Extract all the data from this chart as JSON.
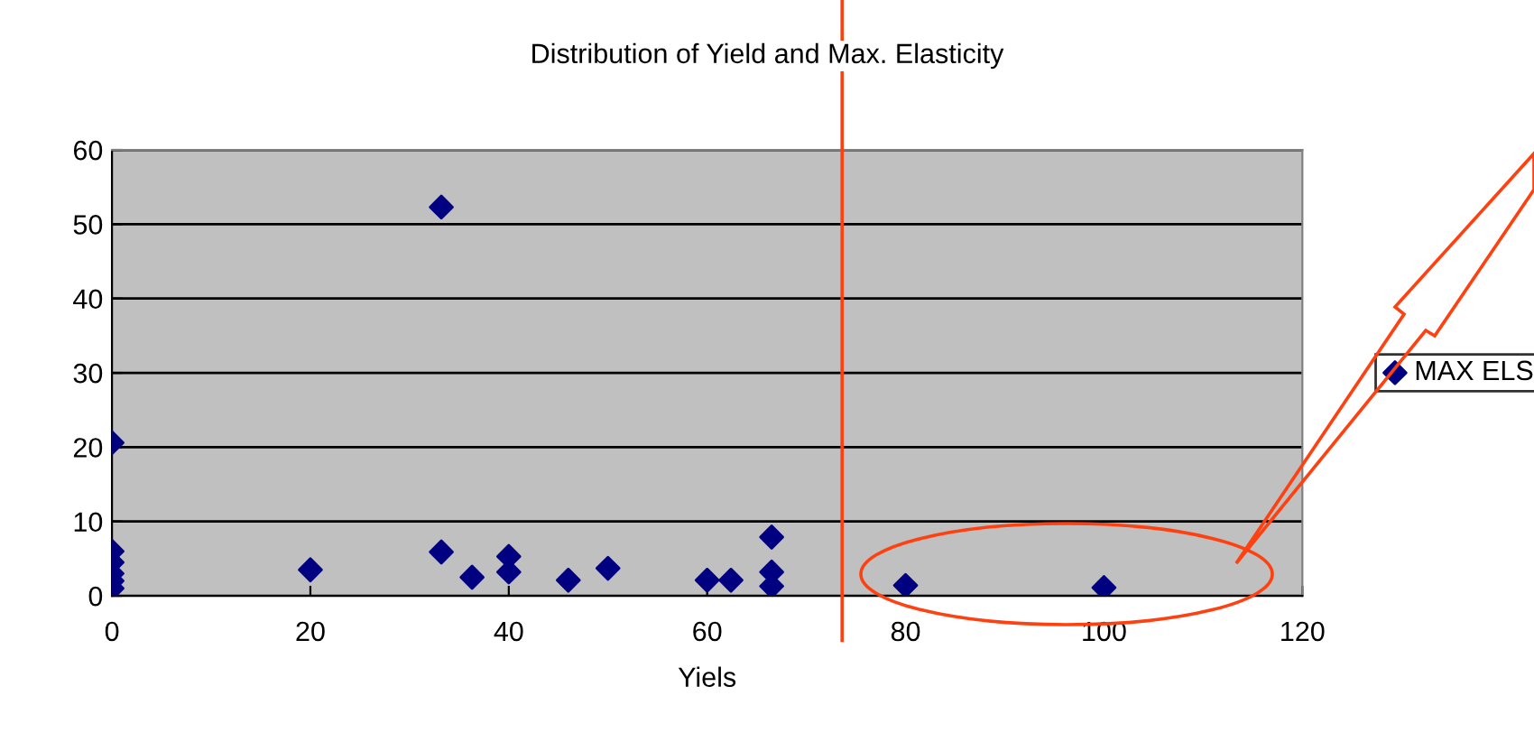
{
  "chart_data": {
    "type": "scatter",
    "title": "Distribution of Yield and Max. Elasticity",
    "xlabel": "Yiels",
    "series": [
      {
        "name": "MAX ELS",
        "color": "#000080",
        "x": [
          0,
          0,
          0,
          0,
          0,
          0,
          20,
          33.2,
          33.2,
          36.3,
          40,
          40,
          46,
          50,
          60,
          62.4,
          66.5,
          66.5,
          66.5,
          80,
          100
        ],
        "values": [
          20.6,
          6,
          4.5,
          3,
          2,
          1,
          3.5,
          52.3,
          5.9,
          2.5,
          5.3,
          3.2,
          2.1,
          3.7,
          2.1,
          2.1,
          7.9,
          3.2,
          1.3,
          1.4,
          1.1
        ]
      }
    ],
    "xlim": [
      0,
      120
    ],
    "ylim": [
      0,
      60
    ],
    "xticks": [
      0,
      20,
      40,
      60,
      80,
      100,
      120
    ],
    "yticks": [
      0,
      10,
      20,
      30,
      40,
      50,
      60
    ],
    "ref_lines": [
      {
        "axis": "x",
        "value": 73.6,
        "color": "#ff4010"
      }
    ],
    "grid": "y",
    "legend": "right",
    "marker": "diamond"
  }
}
